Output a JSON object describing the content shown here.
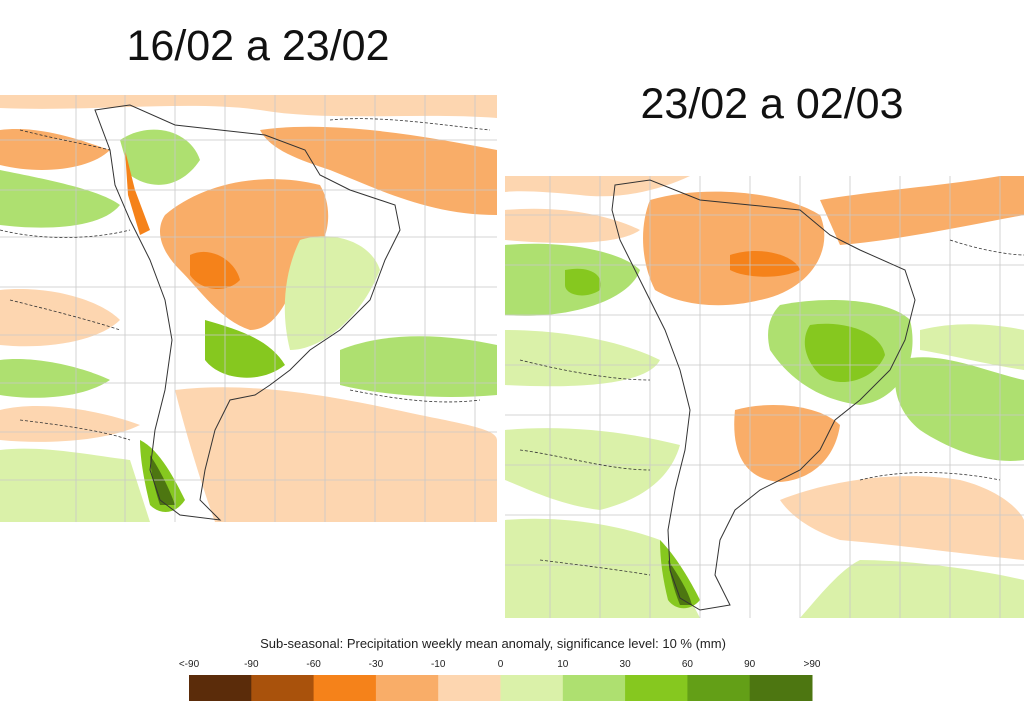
{
  "panels": [
    {
      "title": "16/02 a 23/02"
    },
    {
      "title": "23/02 a 02/03"
    }
  ],
  "legend": {
    "title": "Sub-seasonal: Precipitation weekly mean anomaly, significance level: 10 % (mm)",
    "labels": [
      "<-90",
      "-90",
      "-60",
      "-30",
      "-10",
      "0",
      "10",
      "30",
      "60",
      "90",
      ">90"
    ],
    "colors": [
      "#5b2c0a",
      "#a9520c",
      "#f5821a",
      "#f9ad68",
      "#fdd6b0",
      "#daf1a9",
      "#aee070",
      "#86c81f",
      "#639f17",
      "#4d7611"
    ]
  }
}
